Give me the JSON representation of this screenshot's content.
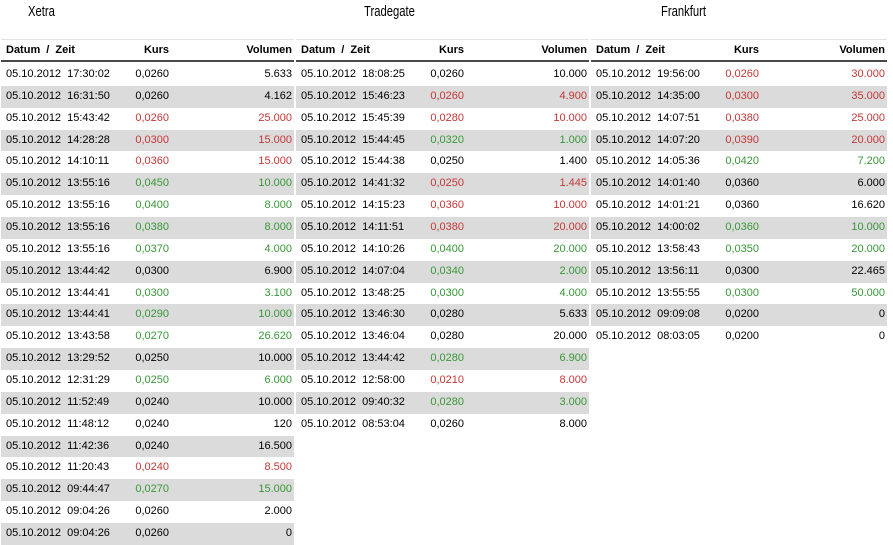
{
  "colors": {
    "up": "#389738",
    "down": "#c43737",
    "neutral": "#000000",
    "row_alt": "#dbdbdb",
    "header_rule": "#4a4a4a"
  },
  "columns": [
    "Datum / Zeit",
    "Kurs",
    "Volumen"
  ],
  "exchanges": [
    {
      "title": "Xetra",
      "rows": [
        {
          "datum_zeit": "05.10.2012 17:30:02",
          "kurs": "0,0260",
          "volumen": "5.633",
          "trend": "neutral"
        },
        {
          "datum_zeit": "05.10.2012 16:31:50",
          "kurs": "0,0260",
          "volumen": "4.162",
          "trend": "neutral"
        },
        {
          "datum_zeit": "05.10.2012 15:43:42",
          "kurs": "0,0260",
          "volumen": "25.000",
          "trend": "down"
        },
        {
          "datum_zeit": "05.10.2012 14:28:28",
          "kurs": "0,0300",
          "volumen": "15.000",
          "trend": "down"
        },
        {
          "datum_zeit": "05.10.2012 14:10:11",
          "kurs": "0,0360",
          "volumen": "15.000",
          "trend": "down"
        },
        {
          "datum_zeit": "05.10.2012 13:55:16",
          "kurs": "0,0450",
          "volumen": "10.000",
          "trend": "up"
        },
        {
          "datum_zeit": "05.10.2012 13:55:16",
          "kurs": "0,0400",
          "volumen": "8.000",
          "trend": "up"
        },
        {
          "datum_zeit": "05.10.2012 13:55:16",
          "kurs": "0,0380",
          "volumen": "8.000",
          "trend": "up"
        },
        {
          "datum_zeit": "05.10.2012 13:55:16",
          "kurs": "0,0370",
          "volumen": "4.000",
          "trend": "up"
        },
        {
          "datum_zeit": "05.10.2012 13:44:42",
          "kurs": "0,0300",
          "volumen": "6.900",
          "trend": "neutral"
        },
        {
          "datum_zeit": "05.10.2012 13:44:41",
          "kurs": "0,0300",
          "volumen": "3.100",
          "trend": "up"
        },
        {
          "datum_zeit": "05.10.2012 13:44:41",
          "kurs": "0,0290",
          "volumen": "10.000",
          "trend": "up"
        },
        {
          "datum_zeit": "05.10.2012 13:43:58",
          "kurs": "0,0270",
          "volumen": "26.620",
          "trend": "up"
        },
        {
          "datum_zeit": "05.10.2012 13:29:52",
          "kurs": "0,0250",
          "volumen": "10.000",
          "trend": "neutral"
        },
        {
          "datum_zeit": "05.10.2012 12:31:29",
          "kurs": "0,0250",
          "volumen": "6.000",
          "trend": "up"
        },
        {
          "datum_zeit": "05.10.2012 11:52:49",
          "kurs": "0,0240",
          "volumen": "10.000",
          "trend": "neutral"
        },
        {
          "datum_zeit": "05.10.2012 11:48:12",
          "kurs": "0,0240",
          "volumen": "120",
          "trend": "neutral"
        },
        {
          "datum_zeit": "05.10.2012 11:42:36",
          "kurs": "0,0240",
          "volumen": "16.500",
          "trend": "neutral"
        },
        {
          "datum_zeit": "05.10.2012 11:20:43",
          "kurs": "0,0240",
          "volumen": "8.500",
          "trend": "down"
        },
        {
          "datum_zeit": "05.10.2012 09:44:47",
          "kurs": "0,0270",
          "volumen": "15.000",
          "trend": "up"
        },
        {
          "datum_zeit": "05.10.2012 09:04:26",
          "kurs": "0,0260",
          "volumen": "2.000",
          "trend": "neutral"
        },
        {
          "datum_zeit": "05.10.2012 09:04:26",
          "kurs": "0,0260",
          "volumen": "0",
          "trend": "neutral"
        }
      ]
    },
    {
      "title": "Tradegate",
      "rows": [
        {
          "datum_zeit": "05.10.2012 18:08:25",
          "kurs": "0,0260",
          "volumen": "10.000",
          "trend": "neutral"
        },
        {
          "datum_zeit": "05.10.2012 15:46:23",
          "kurs": "0,0260",
          "volumen": "4.900",
          "trend": "down"
        },
        {
          "datum_zeit": "05.10.2012 15:45:39",
          "kurs": "0,0280",
          "volumen": "10.000",
          "trend": "down"
        },
        {
          "datum_zeit": "05.10.2012 15:44:45",
          "kurs": "0,0320",
          "volumen": "1.000",
          "trend": "up"
        },
        {
          "datum_zeit": "05.10.2012 15:44:38",
          "kurs": "0,0250",
          "volumen": "1.400",
          "trend": "neutral"
        },
        {
          "datum_zeit": "05.10.2012 14:41:32",
          "kurs": "0,0250",
          "volumen": "1.445",
          "trend": "down"
        },
        {
          "datum_zeit": "05.10.2012 14:15:23",
          "kurs": "0,0360",
          "volumen": "10.000",
          "trend": "down"
        },
        {
          "datum_zeit": "05.10.2012 14:11:51",
          "kurs": "0,0380",
          "volumen": "20.000",
          "trend": "down"
        },
        {
          "datum_zeit": "05.10.2012 14:10:26",
          "kurs": "0,0400",
          "volumen": "20.000",
          "trend": "up"
        },
        {
          "datum_zeit": "05.10.2012 14:07:04",
          "kurs": "0,0340",
          "volumen": "2.000",
          "trend": "up"
        },
        {
          "datum_zeit": "05.10.2012 13:48:25",
          "kurs": "0,0300",
          "volumen": "4.000",
          "trend": "up"
        },
        {
          "datum_zeit": "05.10.2012 13:46:30",
          "kurs": "0,0280",
          "volumen": "5.633",
          "trend": "neutral"
        },
        {
          "datum_zeit": "05.10.2012 13:46:04",
          "kurs": "0,0280",
          "volumen": "20.000",
          "trend": "neutral"
        },
        {
          "datum_zeit": "05.10.2012 13:44:42",
          "kurs": "0,0280",
          "volumen": "6.900",
          "trend": "up"
        },
        {
          "datum_zeit": "05.10.2012 12:58:00",
          "kurs": "0,0210",
          "volumen": "8.000",
          "trend": "down"
        },
        {
          "datum_zeit": "05.10.2012 09:40:32",
          "kurs": "0,0280",
          "volumen": "3.000",
          "trend": "up"
        },
        {
          "datum_zeit": "05.10.2012 08:53:04",
          "kurs": "0,0260",
          "volumen": "8.000",
          "trend": "neutral"
        }
      ]
    },
    {
      "title": "Frankfurt",
      "rows": [
        {
          "datum_zeit": "05.10.2012 19:56:00",
          "kurs": "0,0260",
          "volumen": "30.000",
          "trend": "down"
        },
        {
          "datum_zeit": "05.10.2012 14:35:00",
          "kurs": "0,0300",
          "volumen": "35.000",
          "trend": "down"
        },
        {
          "datum_zeit": "05.10.2012 14:07:51",
          "kurs": "0,0380",
          "volumen": "25.000",
          "trend": "down"
        },
        {
          "datum_zeit": "05.10.2012 14:07:20",
          "kurs": "0,0390",
          "volumen": "20.000",
          "trend": "down"
        },
        {
          "datum_zeit": "05.10.2012 14:05:36",
          "kurs": "0,0420",
          "volumen": "7.200",
          "trend": "up"
        },
        {
          "datum_zeit": "05.10.2012 14:01:40",
          "kurs": "0,0360",
          "volumen": "6.000",
          "trend": "neutral"
        },
        {
          "datum_zeit": "05.10.2012 14:01:21",
          "kurs": "0,0360",
          "volumen": "16.620",
          "trend": "neutral"
        },
        {
          "datum_zeit": "05.10.2012 14:00:02",
          "kurs": "0,0360",
          "volumen": "10.000",
          "trend": "up"
        },
        {
          "datum_zeit": "05.10.2012 13:58:43",
          "kurs": "0,0350",
          "volumen": "20.000",
          "trend": "up"
        },
        {
          "datum_zeit": "05.10.2012 13:56:11",
          "kurs": "0,0300",
          "volumen": "22.465",
          "trend": "neutral"
        },
        {
          "datum_zeit": "05.10.2012 13:55:55",
          "kurs": "0,0300",
          "volumen": "50.000",
          "trend": "up"
        },
        {
          "datum_zeit": "05.10.2012 09:09:08",
          "kurs": "0,0200",
          "volumen": "0",
          "trend": "neutral"
        },
        {
          "datum_zeit": "05.10.2012 08:03:05",
          "kurs": "0,0200",
          "volumen": "0",
          "trend": "neutral"
        }
      ]
    }
  ]
}
